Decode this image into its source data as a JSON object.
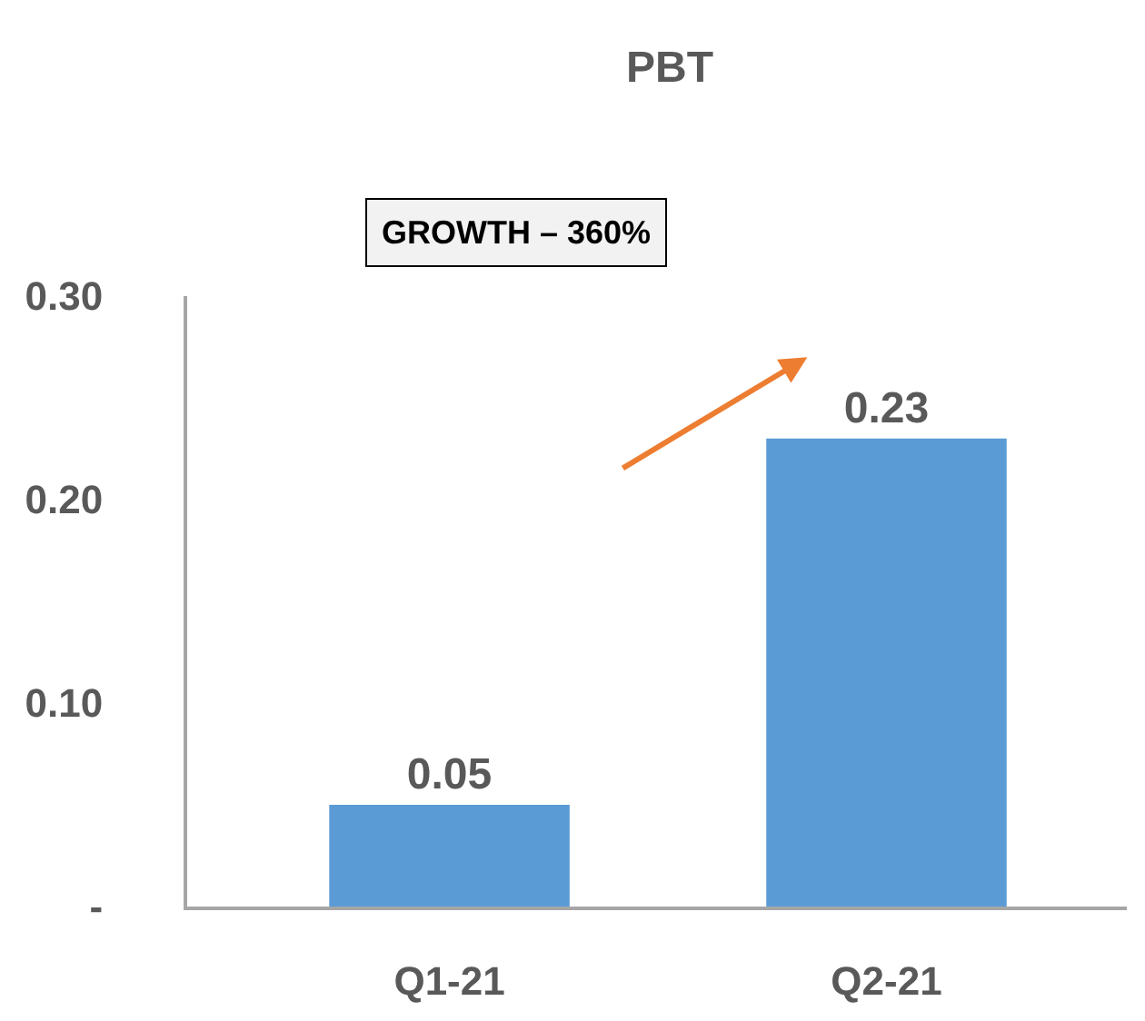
{
  "chart_data": {
    "type": "bar",
    "title": "PBT",
    "categories": [
      "Q1-21",
      "Q2-21"
    ],
    "values": [
      0.05,
      0.23
    ],
    "color": "#5b9bd5",
    "ylim": [
      0,
      0.3
    ],
    "yticks": [
      {
        "value": 0,
        "label": "-"
      },
      {
        "value": 0.1,
        "label": "0.10"
      },
      {
        "value": 0.2,
        "label": "0.20"
      },
      {
        "value": 0.3,
        "label": "0.30"
      }
    ],
    "data_labels": true,
    "annotations": [
      "GROWTH – 360%"
    ]
  }
}
